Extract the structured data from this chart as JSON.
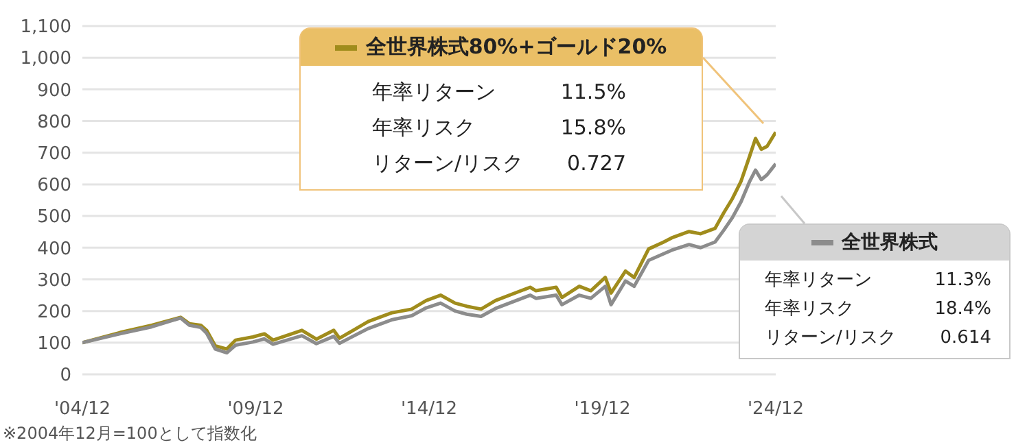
{
  "chart_data": {
    "type": "line",
    "x": [
      "2004-12",
      "2006-01",
      "2006-12",
      "2007-10",
      "2008-01",
      "2008-05",
      "2008-07",
      "2008-10",
      "2009-02",
      "2009-05",
      "2009-11",
      "2010-03",
      "2010-06",
      "2011-04",
      "2011-09",
      "2012-03",
      "2012-05",
      "2013-03",
      "2013-11",
      "2014-06",
      "2014-11",
      "2015-04",
      "2015-09",
      "2016-01",
      "2016-06",
      "2016-11",
      "2017-11",
      "2018-01",
      "2018-08",
      "2018-10",
      "2019-04",
      "2019-08",
      "2020-01",
      "2020-03",
      "2020-08",
      "2020-11",
      "2021-04",
      "2021-09",
      "2021-12",
      "2022-06",
      "2022-10",
      "2023-03",
      "2023-06",
      "2023-09",
      "2023-12",
      "2024-03",
      "2024-05",
      "2024-07",
      "2024-09",
      "2024-12"
    ],
    "series": [
      {
        "name": "全世界株式80%+ゴールド20%",
        "color": "#a08c1c",
        "values": [
          100,
          132,
          155,
          180,
          160,
          155,
          139,
          90,
          80,
          108,
          118,
          128,
          108,
          139,
          111,
          139,
          114,
          167,
          194,
          206,
          233,
          250,
          225,
          215,
          206,
          233,
          275,
          264,
          275,
          243,
          278,
          264,
          306,
          257,
          326,
          306,
          396,
          417,
          431,
          451,
          444,
          461,
          510,
          555,
          610,
          690,
          745,
          711,
          720,
          765
        ]
      },
      {
        "name": "全世界株式",
        "color": "#8c8c8c",
        "values": [
          100,
          128,
          150,
          178,
          155,
          148,
          130,
          80,
          68,
          92,
          102,
          112,
          95,
          122,
          97,
          120,
          98,
          145,
          172,
          185,
          210,
          225,
          200,
          190,
          183,
          208,
          250,
          240,
          250,
          220,
          250,
          240,
          278,
          220,
          295,
          278,
          360,
          380,
          392,
          410,
          400,
          418,
          455,
          495,
          545,
          610,
          645,
          615,
          630,
          665
        ]
      }
    ],
    "xlim": [
      "2004-12",
      "2024-12"
    ],
    "xticks": [
      {
        "value": "2004-12",
        "label": "'04/12"
      },
      {
        "value": "2009-12",
        "label": "'09/12"
      },
      {
        "value": "2014-12",
        "label": "'14/12"
      },
      {
        "value": "2019-12",
        "label": "'19/12"
      },
      {
        "value": "2024-12",
        "label": "'24/12"
      }
    ],
    "ylim": [
      0,
      1100
    ],
    "yticks": [
      0,
      100,
      200,
      300,
      400,
      500,
      600,
      700,
      800,
      900,
      {
        "value": 1000,
        "label": "1,000"
      },
      {
        "value": 1100,
        "label": "1,100"
      }
    ],
    "grid": "y",
    "legend": "top right",
    "marker": "none",
    "line_style": "solid",
    "annotations": [
      "年率リターン",
      "11.5%",
      "年率リスク",
      "15.8%",
      "リターン/リスク",
      "0.727",
      "年率リターン",
      "11.3%",
      "年率リスク",
      "18.4%",
      "リターン/リスク",
      "0.614",
      "※2004年12月=100として指数化"
    ]
  }
}
